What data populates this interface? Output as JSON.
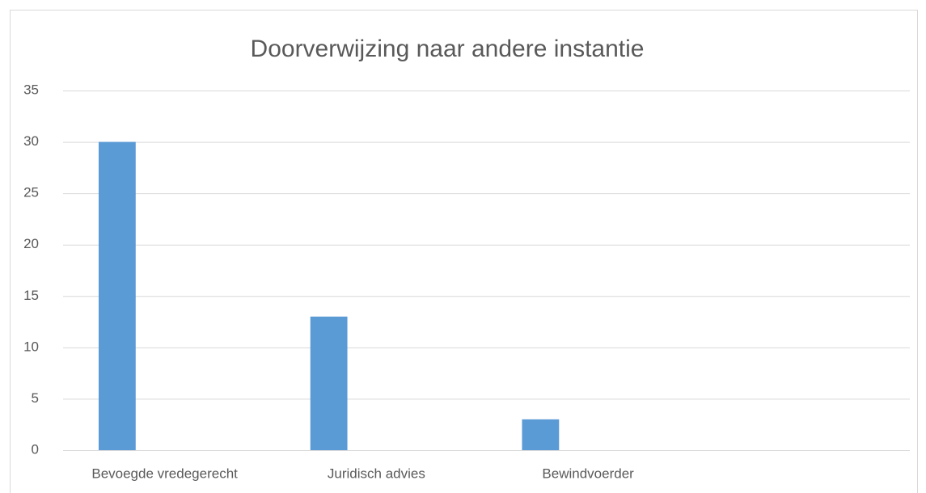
{
  "chart_data": {
    "type": "bar",
    "title": "Doorverwijzing naar andere instantie",
    "categories": [
      "Bevoegde vredegerecht",
      "Juridisch advies",
      "Bewindvoerder",
      null
    ],
    "values": [
      30,
      13,
      3,
      null
    ],
    "color": "#5b9bd5",
    "ylim": [
      0,
      35
    ],
    "yticks": [
      0,
      5,
      10,
      15,
      20,
      25,
      30,
      35
    ],
    "grid": true
  }
}
